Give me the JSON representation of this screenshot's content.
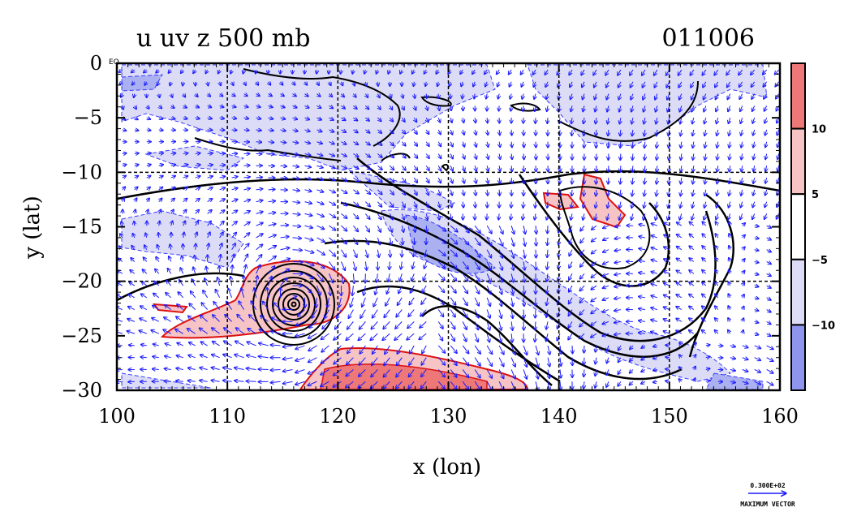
{
  "chart_data": {
    "type": "contour",
    "title": "u uv z 500 mb",
    "date_label": "011006",
    "corner_label": "EQ",
    "xlabel": "x (lon)",
    "ylabel": "y (lat)",
    "xlim": [
      100,
      160
    ],
    "ylim": [
      -30,
      0
    ],
    "xticks": [
      100,
      110,
      120,
      130,
      140,
      150,
      160
    ],
    "yticks": [
      0,
      -5,
      -10,
      -15,
      -20,
      -25,
      -30
    ],
    "xtick_labels": [
      "100",
      "110",
      "120",
      "130",
      "140",
      "150",
      "160"
    ],
    "ytick_labels": [
      "0",
      "−5",
      "−10",
      "−15",
      "−20",
      "−25",
      "−30"
    ],
    "grid": true,
    "grid_lon": [
      110,
      120,
      130,
      140,
      150
    ],
    "grid_lat": [
      -10,
      -20
    ],
    "colorbar": {
      "labels": [
        "10",
        "5",
        "−5",
        "−10"
      ],
      "label_values": [
        10,
        5,
        -5,
        -10
      ],
      "bands": [
        {
          "range": "> 10",
          "color": "#ee7777"
        },
        {
          "range": "5 to 10",
          "color": "#f6c4c4"
        },
        {
          "range": "-5 to 5",
          "color": "#ffffff"
        },
        {
          "range": "-10 to -5",
          "color": "#dcdcf6"
        },
        {
          "range": "< -10",
          "color": "#8f95ec"
        }
      ]
    },
    "vector_legend": {
      "value_label": "0.300E+02",
      "caption": "MAXIMUM VECTOR"
    },
    "cyclone_center": {
      "lon": 116,
      "lat": -22
    },
    "height_contour_color": "#000000",
    "vector_color": "#1a1aff"
  }
}
